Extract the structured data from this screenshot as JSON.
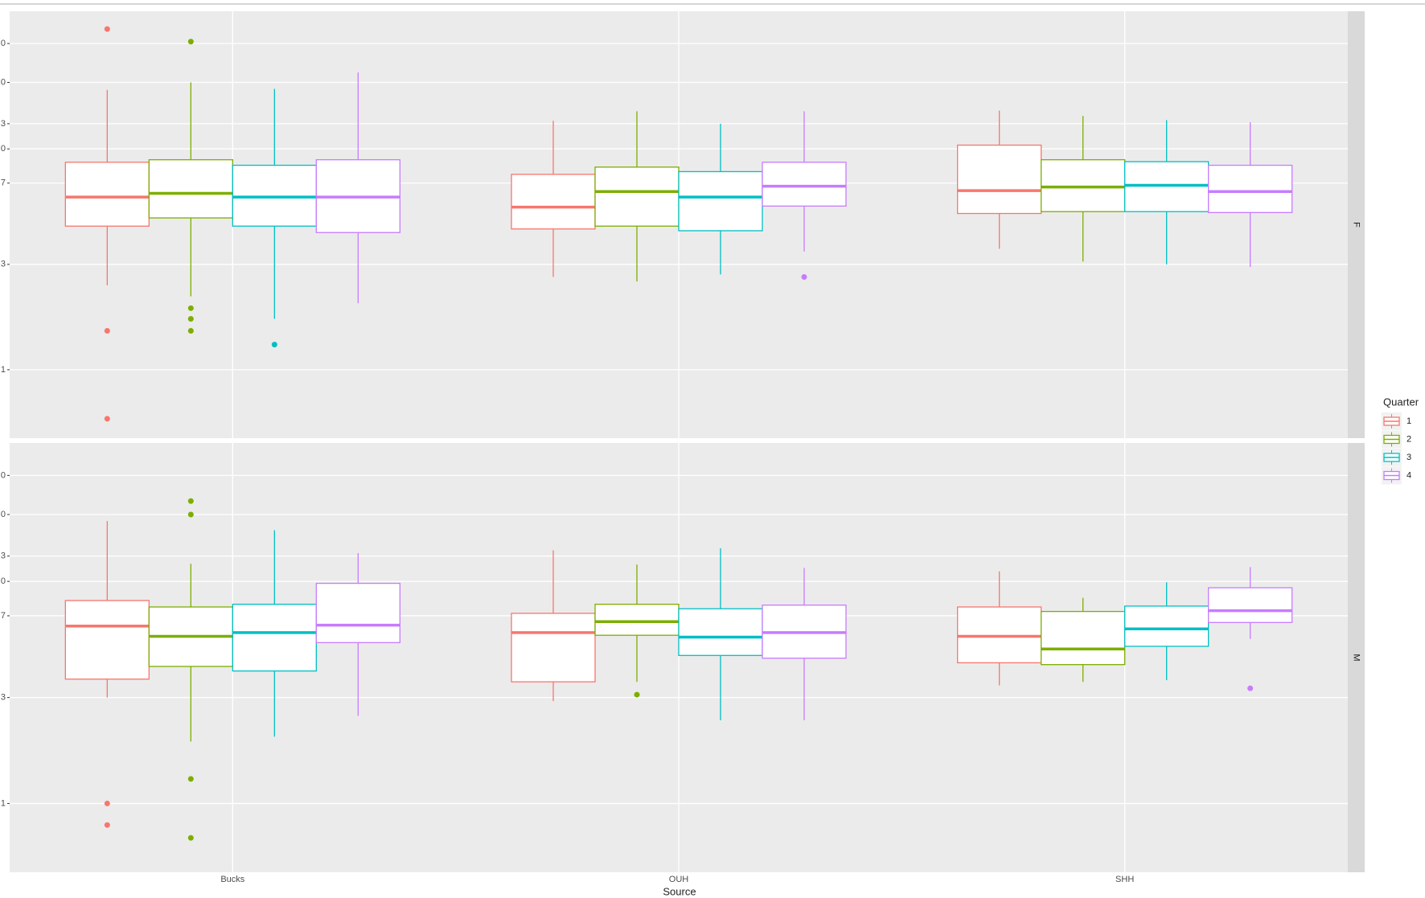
{
  "chart_data": {
    "type": "boxplot",
    "x_label": "Source",
    "legend_title": "Quarter",
    "legend_position": "right",
    "log_scale": true,
    "grid": true,
    "categories": [
      "Bucks",
      "OUH",
      "SHH"
    ],
    "ylim": [
      0.49,
      42
    ],
    "yticks": [
      1,
      3,
      7,
      {
        "value": 10,
        "label": "0"
      },
      {
        "value": 13,
        "label": "3"
      },
      {
        "value": 20,
        "label": "0"
      },
      {
        "value": 30,
        "label": "0"
      }
    ],
    "facets": [
      {
        "label": "F",
        "series": [
          {
            "name": "1",
            "color": "#F8766D",
            "boxes": [
              {
                "whislo": 2.41,
                "q1": 4.47,
                "med": 6.05,
                "q3": 8.7,
                "whishi": 18.5,
                "fliers": [
                  34.9,
                  1.5,
                  0.6
                ]
              },
              {
                "whislo": 2.63,
                "q1": 4.34,
                "med": 5.45,
                "q3": 7.67,
                "whishi": 13.4,
                "fliers": []
              },
              {
                "whislo": 3.53,
                "q1": 5.1,
                "med": 6.47,
                "q3": 10.4,
                "whishi": 14.9,
                "fliers": []
              }
            ]
          },
          {
            "name": "2",
            "color": "#7CAE00",
            "boxes": [
              {
                "whislo": 2.15,
                "q1": 4.87,
                "med": 6.29,
                "q3": 8.93,
                "whishi": 20.0,
                "fliers": [
                  30.6,
                  1.9,
                  1.7,
                  1.5
                ]
              },
              {
                "whislo": 2.51,
                "q1": 4.47,
                "med": 6.41,
                "q3": 8.27,
                "whishi": 14.8,
                "fliers": []
              },
              {
                "whislo": 3.09,
                "q1": 5.2,
                "med": 6.72,
                "q3": 8.93,
                "whishi": 14.1,
                "fliers": []
              }
            ]
          },
          {
            "name": "3",
            "color": "#00BFC4",
            "boxes": [
              {
                "whislo": 1.7,
                "q1": 4.47,
                "med": 6.05,
                "q3": 8.43,
                "whishi": 18.7,
                "fliers": [
                  1.3
                ]
              },
              {
                "whislo": 2.7,
                "q1": 4.26,
                "med": 6.05,
                "q3": 7.89,
                "whishi": 13.0,
                "fliers": []
              },
              {
                "whislo": 3.0,
                "q1": 5.2,
                "med": 6.84,
                "q3": 8.75,
                "whishi": 13.5,
                "fliers": []
              }
            ]
          },
          {
            "name": "4",
            "color": "#C77CFF",
            "boxes": [
              {
                "whislo": 2.0,
                "q1": 4.18,
                "med": 6.05,
                "q3": 8.93,
                "whishi": 22.2,
                "fliers": []
              },
              {
                "whislo": 3.43,
                "q1": 5.51,
                "med": 6.78,
                "q3": 8.7,
                "whishi": 14.8,
                "fliers": [
                  2.63
                ]
              },
              {
                "whislo": 2.92,
                "q1": 5.15,
                "med": 6.41,
                "q3": 8.43,
                "whishi": 13.2,
                "fliers": []
              }
            ]
          }
        ]
      },
      {
        "label": "M",
        "series": [
          {
            "name": "1",
            "color": "#F8766D",
            "boxes": [
              {
                "whislo": 3.0,
                "q1": 3.63,
                "med": 6.29,
                "q3": 8.2,
                "whishi": 18.7,
                "fliers": [
                  1.0,
                  0.8
                ]
              },
              {
                "whislo": 2.89,
                "q1": 3.53,
                "med": 5.88,
                "q3": 7.18,
                "whishi": 13.8,
                "fliers": []
              },
              {
                "whislo": 3.4,
                "q1": 4.3,
                "med": 5.66,
                "q3": 7.67,
                "whishi": 11.1,
                "fliers": []
              }
            ]
          },
          {
            "name": "2",
            "color": "#7CAE00",
            "boxes": [
              {
                "whislo": 1.9,
                "q1": 4.14,
                "med": 5.66,
                "q3": 7.67,
                "whishi": 12.0,
                "fliers": [
                  23.0,
                  20.0,
                  1.29,
                  0.7
                ]
              },
              {
                "whislo": 3.53,
                "q1": 5.72,
                "med": 6.59,
                "q3": 7.89,
                "whishi": 11.9,
                "fliers": [
                  3.09
                ]
              },
              {
                "whislo": 3.53,
                "q1": 4.22,
                "med": 4.96,
                "q3": 7.32,
                "whishi": 8.43,
                "fliers": []
              }
            ]
          },
          {
            "name": "3",
            "color": "#00BFC4",
            "boxes": [
              {
                "whislo": 2.0,
                "q1": 3.95,
                "med": 5.88,
                "q3": 7.89,
                "whishi": 17.0,
                "fliers": []
              },
              {
                "whislo": 2.37,
                "q1": 4.64,
                "med": 5.61,
                "q3": 7.53,
                "whishi": 14.1,
                "fliers": []
              },
              {
                "whislo": 3.59,
                "q1": 5.1,
                "med": 6.11,
                "q3": 7.74,
                "whishi": 9.91,
                "fliers": []
              }
            ]
          },
          {
            "name": "4",
            "color": "#C77CFF",
            "boxes": [
              {
                "whislo": 2.48,
                "q1": 5.3,
                "med": 6.35,
                "q3": 9.8,
                "whishi": 13.4,
                "fliers": []
              },
              {
                "whislo": 2.37,
                "q1": 4.51,
                "med": 5.88,
                "q3": 7.82,
                "whishi": 11.5,
                "fliers": []
              },
              {
                "whislo": 5.51,
                "q1": 6.53,
                "med": 7.38,
                "q3": 9.36,
                "whishi": 11.6,
                "fliers": [
                  3.3
                ]
              }
            ]
          }
        ]
      }
    ]
  }
}
